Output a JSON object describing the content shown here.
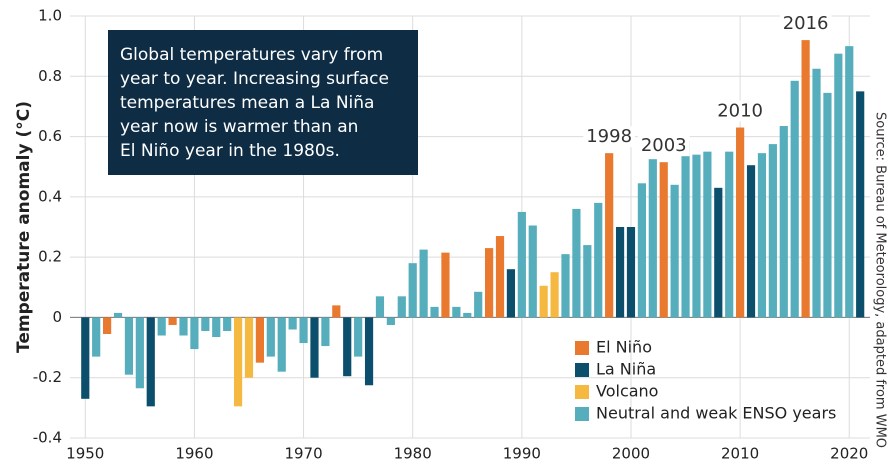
{
  "chart_data": {
    "type": "bar",
    "y_label": "Temperature anomaly (°C)",
    "source": "Source: Bureau of Meteorology, adapted from WMO",
    "callout": [
      "Global temperatures vary from",
      "year to year. Increasing surface",
      "temperatures mean a La Niña",
      "year now is warmer than an",
      "El Niño year in the 1980s."
    ],
    "annotations": [
      "1998",
      "2003",
      "2010",
      "2016"
    ],
    "x": [
      1950,
      1951,
      1952,
      1953,
      1954,
      1955,
      1956,
      1957,
      1958,
      1959,
      1960,
      1961,
      1962,
      1963,
      1964,
      1965,
      1966,
      1967,
      1968,
      1969,
      1970,
      1971,
      1972,
      1973,
      1974,
      1975,
      1976,
      1977,
      1978,
      1979,
      1980,
      1981,
      1982,
      1983,
      1984,
      1985,
      1986,
      1987,
      1988,
      1989,
      1990,
      1991,
      1992,
      1993,
      1994,
      1995,
      1996,
      1997,
      1998,
      1999,
      2000,
      2001,
      2002,
      2003,
      2004,
      2005,
      2006,
      2007,
      2008,
      2009,
      2010,
      2011,
      2012,
      2013,
      2014,
      2015,
      2016,
      2017,
      2018,
      2019,
      2020,
      2021
    ],
    "series": [
      {
        "name": "El Niño",
        "color": "#e8792f",
        "values": [
          null,
          null,
          -0.055,
          null,
          null,
          null,
          null,
          null,
          -0.025,
          null,
          null,
          null,
          null,
          null,
          null,
          null,
          -0.15,
          null,
          null,
          null,
          null,
          null,
          null,
          0.04,
          null,
          null,
          null,
          null,
          null,
          null,
          null,
          null,
          null,
          0.215,
          null,
          null,
          null,
          0.23,
          0.27,
          null,
          null,
          null,
          null,
          null,
          null,
          null,
          null,
          null,
          0.545,
          null,
          null,
          null,
          null,
          0.515,
          null,
          null,
          null,
          null,
          null,
          null,
          0.63,
          null,
          null,
          null,
          null,
          null,
          0.92,
          null,
          null,
          null,
          null,
          null
        ]
      },
      {
        "name": "La Niña",
        "color": "#0b4f6c",
        "values": [
          -0.27,
          null,
          null,
          null,
          null,
          null,
          -0.295,
          null,
          null,
          null,
          null,
          null,
          null,
          null,
          null,
          null,
          null,
          null,
          null,
          null,
          null,
          -0.2,
          null,
          null,
          -0.195,
          null,
          -0.225,
          null,
          null,
          null,
          null,
          null,
          null,
          null,
          null,
          null,
          null,
          null,
          null,
          0.16,
          null,
          null,
          null,
          null,
          null,
          null,
          null,
          null,
          null,
          0.3,
          0.3,
          null,
          null,
          null,
          null,
          null,
          null,
          null,
          0.43,
          null,
          null,
          0.505,
          null,
          null,
          null,
          null,
          null,
          null,
          null,
          null,
          null,
          0.75
        ]
      },
      {
        "name": "Volcano",
        "color": "#f5b942",
        "values": [
          null,
          null,
          null,
          null,
          null,
          null,
          null,
          null,
          null,
          null,
          null,
          null,
          null,
          null,
          -0.295,
          -0.2,
          null,
          null,
          null,
          null,
          null,
          null,
          null,
          null,
          null,
          null,
          null,
          null,
          null,
          null,
          null,
          null,
          null,
          null,
          null,
          null,
          null,
          null,
          null,
          null,
          null,
          null,
          0.105,
          0.15,
          null,
          null,
          null,
          null,
          null,
          null,
          null,
          null,
          null,
          null,
          null,
          null,
          null,
          null,
          null,
          null,
          null,
          null,
          null,
          null,
          null,
          null,
          null,
          null,
          null,
          null,
          null,
          null
        ]
      },
      {
        "name": "Neutral and weak ENSO years",
        "color": "#56aebc",
        "values": [
          null,
          -0.13,
          null,
          0.015,
          -0.19,
          -0.235,
          null,
          -0.06,
          null,
          -0.06,
          -0.105,
          -0.045,
          -0.065,
          -0.045,
          null,
          null,
          null,
          -0.13,
          -0.18,
          -0.04,
          -0.085,
          null,
          -0.095,
          null,
          null,
          -0.13,
          null,
          0.07,
          -0.025,
          0.07,
          0.18,
          0.225,
          0.035,
          null,
          0.035,
          0.015,
          0.085,
          null,
          null,
          null,
          0.35,
          0.305,
          null,
          null,
          0.21,
          0.36,
          0.24,
          0.38,
          null,
          null,
          null,
          0.445,
          0.525,
          null,
          0.44,
          0.585,
          0.54,
          0.55,
          null,
          0.55,
          null,
          null,
          0.545,
          0.575,
          0.635,
          0.785,
          null,
          0.825,
          0.745,
          0.875,
          0.9,
          null
        ]
      }
    ],
    "xlim": [
      1948.6,
      2021.9
    ],
    "xticks": [
      1950,
      1960,
      1970,
      1980,
      1990,
      2000,
      2010,
      2020
    ],
    "ylim": [
      -0.4,
      1.0
    ],
    "yticks": [
      -0.4,
      -0.2,
      0,
      0.2,
      0.4,
      0.6,
      0.8,
      {
        "value": 1,
        "label": "1.0"
      }
    ],
    "grid": true,
    "legend": "lower right"
  }
}
